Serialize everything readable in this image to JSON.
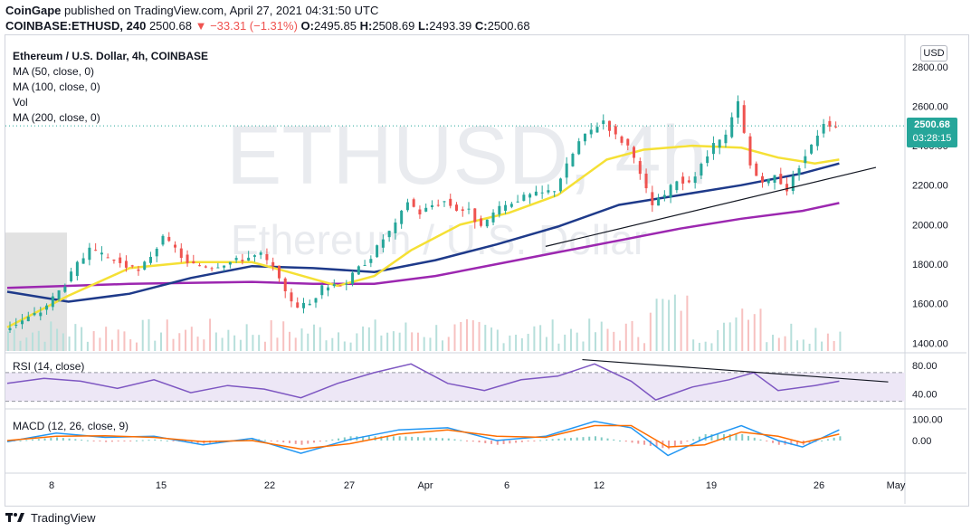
{
  "header": {
    "line1_author": "CoinGape",
    "line1_rest": " published on TradingView.com, April 27, 2021 04:31:50 UTC",
    "symbol": "COINBASE:ETHUSD, 240",
    "last": "2500.68",
    "change": "−33.31 (−1.31%)",
    "o_label": "O:",
    "o": "2495.85",
    "h_label": "H:",
    "h": "2508.69",
    "l_label": "L:",
    "l": "2493.39",
    "c_label": "C:",
    "c": "2500.68"
  },
  "legend": {
    "title": "Ethereum / U.S. Dollar, 4h, COINBASE",
    "ma50": "MA (50, close, 0)",
    "ma100": "MA (100, close, 0)",
    "vol": "Vol",
    "ma200": "MA (200, close, 0)"
  },
  "watermark": {
    "symbol": "ETHUSD, 4h",
    "name": "Ethereum / U.S. Dollar"
  },
  "currency_button": "USD",
  "price_tag": {
    "price": "2500.68",
    "countdown": "03:28:15"
  },
  "footer": {
    "brand": "TradingView"
  },
  "colors": {
    "up": "#26a69a",
    "down": "#ef5350",
    "ma50": "#f5e035",
    "ma100": "#1e3a8a",
    "ma200": "#9c27b0",
    "rsi": "#7e57c2",
    "macd": "#2196f3",
    "signal": "#ff6d00"
  },
  "chart_data": [
    {
      "type": "candlestick",
      "title": "Ethereum / U.S. Dollar, 4h, COINBASE",
      "x_ticks": [
        "8",
        "15",
        "22",
        "27",
        "Apr",
        "6",
        "12",
        "19",
        "26",
        "May"
      ],
      "y_ticks": [
        "2800.00",
        "2600.00",
        "2400.00",
        "2200.00",
        "2000.00",
        "1800.00",
        "1600.00",
        "1400.00"
      ],
      "ylim": [
        1360,
        2900
      ],
      "last_price": 2500.68,
      "price_path": [
        {
          "t": 0,
          "p": 1470
        },
        {
          "t": 3,
          "p": 1560
        },
        {
          "t": 5,
          "p": 1700
        },
        {
          "t": 6,
          "p": 1800
        },
        {
          "t": 7,
          "p": 1870
        },
        {
          "t": 9,
          "p": 1820
        },
        {
          "t": 11,
          "p": 1760
        },
        {
          "t": 13,
          "p": 1930
        },
        {
          "t": 14,
          "p": 1880
        },
        {
          "t": 15,
          "p": 1800
        },
        {
          "t": 17,
          "p": 1790
        },
        {
          "t": 19,
          "p": 1820
        },
        {
          "t": 21,
          "p": 1850
        },
        {
          "t": 22,
          "p": 1780
        },
        {
          "t": 23,
          "p": 1650
        },
        {
          "t": 24,
          "p": 1590
        },
        {
          "t": 25,
          "p": 1600
        },
        {
          "t": 26,
          "p": 1680
        },
        {
          "t": 27,
          "p": 1700
        },
        {
          "t": 28,
          "p": 1710
        },
        {
          "t": 29,
          "p": 1780
        },
        {
          "t": 30,
          "p": 1840
        },
        {
          "t": 31,
          "p": 1930
        },
        {
          "t": 32,
          "p": 2000
        },
        {
          "t": 33,
          "p": 2120
        },
        {
          "t": 34,
          "p": 2060
        },
        {
          "t": 35,
          "p": 2100
        },
        {
          "t": 36,
          "p": 2120
        },
        {
          "t": 37,
          "p": 2080
        },
        {
          "t": 38,
          "p": 2070
        },
        {
          "t": 39,
          "p": 1980
        },
        {
          "t": 40,
          "p": 2060
        },
        {
          "t": 41,
          "p": 2100
        },
        {
          "t": 42,
          "p": 2130
        },
        {
          "t": 43,
          "p": 2150
        },
        {
          "t": 44,
          "p": 2160
        },
        {
          "t": 45,
          "p": 2180
        },
        {
          "t": 46,
          "p": 2300
        },
        {
          "t": 47,
          "p": 2420
        },
        {
          "t": 48,
          "p": 2480
        },
        {
          "t": 49,
          "p": 2530
        },
        {
          "t": 50,
          "p": 2450
        },
        {
          "t": 51,
          "p": 2400
        },
        {
          "t": 52,
          "p": 2250
        },
        {
          "t": 53,
          "p": 2100
        },
        {
          "t": 54,
          "p": 2150
        },
        {
          "t": 55,
          "p": 2230
        },
        {
          "t": 56,
          "p": 2200
        },
        {
          "t": 57,
          "p": 2300
        },
        {
          "t": 58,
          "p": 2400
        },
        {
          "t": 59,
          "p": 2450
        },
        {
          "t": 60,
          "p": 2620
        },
        {
          "t": 61,
          "p": 2300
        },
        {
          "t": 62,
          "p": 2200
        },
        {
          "t": 63,
          "p": 2250
        },
        {
          "t": 64,
          "p": 2180
        },
        {
          "t": 65,
          "p": 2300
        },
        {
          "t": 66,
          "p": 2400
        },
        {
          "t": 67,
          "p": 2520
        },
        {
          "t": 68,
          "p": 2500.68
        }
      ],
      "ma50_path": [
        {
          "t": 0,
          "p": 1480
        },
        {
          "t": 5,
          "p": 1640
        },
        {
          "t": 10,
          "p": 1780
        },
        {
          "t": 15,
          "p": 1810
        },
        {
          "t": 20,
          "p": 1810
        },
        {
          "t": 23,
          "p": 1760
        },
        {
          "t": 27,
          "p": 1690
        },
        {
          "t": 30,
          "p": 1740
        },
        {
          "t": 33,
          "p": 1870
        },
        {
          "t": 37,
          "p": 2000
        },
        {
          "t": 41,
          "p": 2060
        },
        {
          "t": 45,
          "p": 2150
        },
        {
          "t": 49,
          "p": 2330
        },
        {
          "t": 52,
          "p": 2380
        },
        {
          "t": 56,
          "p": 2400
        },
        {
          "t": 60,
          "p": 2390
        },
        {
          "t": 63,
          "p": 2340
        },
        {
          "t": 66,
          "p": 2310
        },
        {
          "t": 68,
          "p": 2330
        }
      ],
      "ma100_path": [
        {
          "t": 0,
          "p": 1660
        },
        {
          "t": 5,
          "p": 1610
        },
        {
          "t": 10,
          "p": 1650
        },
        {
          "t": 15,
          "p": 1730
        },
        {
          "t": 20,
          "p": 1790
        },
        {
          "t": 25,
          "p": 1780
        },
        {
          "t": 30,
          "p": 1760
        },
        {
          "t": 35,
          "p": 1820
        },
        {
          "t": 40,
          "p": 1900
        },
        {
          "t": 45,
          "p": 1990
        },
        {
          "t": 50,
          "p": 2100
        },
        {
          "t": 55,
          "p": 2150
        },
        {
          "t": 60,
          "p": 2200
        },
        {
          "t": 65,
          "p": 2260
        },
        {
          "t": 68,
          "p": 2310
        }
      ],
      "ma200_path": [
        {
          "t": 0,
          "p": 1680
        },
        {
          "t": 10,
          "p": 1700
        },
        {
          "t": 20,
          "p": 1710
        },
        {
          "t": 25,
          "p": 1700
        },
        {
          "t": 30,
          "p": 1700
        },
        {
          "t": 35,
          "p": 1740
        },
        {
          "t": 40,
          "p": 1800
        },
        {
          "t": 45,
          "p": 1860
        },
        {
          "t": 50,
          "p": 1920
        },
        {
          "t": 55,
          "p": 1980
        },
        {
          "t": 60,
          "p": 2030
        },
        {
          "t": 65,
          "p": 2070
        },
        {
          "t": 68,
          "p": 2110
        }
      ],
      "trendline": {
        "from": {
          "t": 44,
          "p": 1890
        },
        "to": {
          "t": 71,
          "p": 2290
        }
      },
      "t_range": [
        0,
        73
      ]
    },
    {
      "type": "line",
      "title": "RSI (14, close)",
      "y_ticks": [
        "80.00",
        "40.00"
      ],
      "ylim": [
        22,
        95
      ],
      "band": [
        30,
        70
      ],
      "rsi_path": [
        {
          "t": 0,
          "p": 55
        },
        {
          "t": 3,
          "p": 62
        },
        {
          "t": 6,
          "p": 58
        },
        {
          "t": 9,
          "p": 48
        },
        {
          "t": 12,
          "p": 60
        },
        {
          "t": 15,
          "p": 42
        },
        {
          "t": 18,
          "p": 52
        },
        {
          "t": 21,
          "p": 47
        },
        {
          "t": 24,
          "p": 35
        },
        {
          "t": 27,
          "p": 55
        },
        {
          "t": 30,
          "p": 70
        },
        {
          "t": 33,
          "p": 82
        },
        {
          "t": 36,
          "p": 55
        },
        {
          "t": 39,
          "p": 45
        },
        {
          "t": 42,
          "p": 60
        },
        {
          "t": 45,
          "p": 65
        },
        {
          "t": 48,
          "p": 82
        },
        {
          "t": 51,
          "p": 58
        },
        {
          "t": 53,
          "p": 32
        },
        {
          "t": 56,
          "p": 50
        },
        {
          "t": 59,
          "p": 60
        },
        {
          "t": 61,
          "p": 70
        },
        {
          "t": 63,
          "p": 45
        },
        {
          "t": 66,
          "p": 52
        },
        {
          "t": 68,
          "p": 58
        }
      ],
      "trendline": {
        "from": {
          "t": 47,
          "p": 88
        },
        "to": {
          "t": 72,
          "p": 57
        }
      }
    },
    {
      "type": "line",
      "title": "MACD (12, 26, close, 9)",
      "y_ticks": [
        "100.00",
        "0.00"
      ],
      "ylim": [
        -140,
        140
      ],
      "macd_path": [
        {
          "t": 0,
          "p": -5
        },
        {
          "t": 4,
          "p": 35
        },
        {
          "t": 8,
          "p": 15
        },
        {
          "t": 12,
          "p": 20
        },
        {
          "t": 16,
          "p": -20
        },
        {
          "t": 20,
          "p": 10
        },
        {
          "t": 24,
          "p": -60
        },
        {
          "t": 28,
          "p": 5
        },
        {
          "t": 32,
          "p": 50
        },
        {
          "t": 36,
          "p": 60
        },
        {
          "t": 40,
          "p": 0
        },
        {
          "t": 44,
          "p": 20
        },
        {
          "t": 48,
          "p": 90
        },
        {
          "t": 51,
          "p": 60
        },
        {
          "t": 54,
          "p": -70
        },
        {
          "t": 57,
          "p": 10
        },
        {
          "t": 60,
          "p": 70
        },
        {
          "t": 63,
          "p": 0
        },
        {
          "t": 65,
          "p": -30
        },
        {
          "t": 68,
          "p": 50
        }
      ],
      "signal_path": [
        {
          "t": 0,
          "p": 0
        },
        {
          "t": 4,
          "p": 20
        },
        {
          "t": 8,
          "p": 22
        },
        {
          "t": 12,
          "p": 15
        },
        {
          "t": 16,
          "p": -5
        },
        {
          "t": 20,
          "p": 0
        },
        {
          "t": 24,
          "p": -40
        },
        {
          "t": 28,
          "p": -15
        },
        {
          "t": 32,
          "p": 30
        },
        {
          "t": 36,
          "p": 50
        },
        {
          "t": 40,
          "p": 20
        },
        {
          "t": 44,
          "p": 15
        },
        {
          "t": 48,
          "p": 70
        },
        {
          "t": 51,
          "p": 70
        },
        {
          "t": 54,
          "p": -30
        },
        {
          "t": 57,
          "p": -20
        },
        {
          "t": 60,
          "p": 40
        },
        {
          "t": 63,
          "p": 20
        },
        {
          "t": 65,
          "p": -10
        },
        {
          "t": 68,
          "p": 30
        }
      ]
    }
  ]
}
